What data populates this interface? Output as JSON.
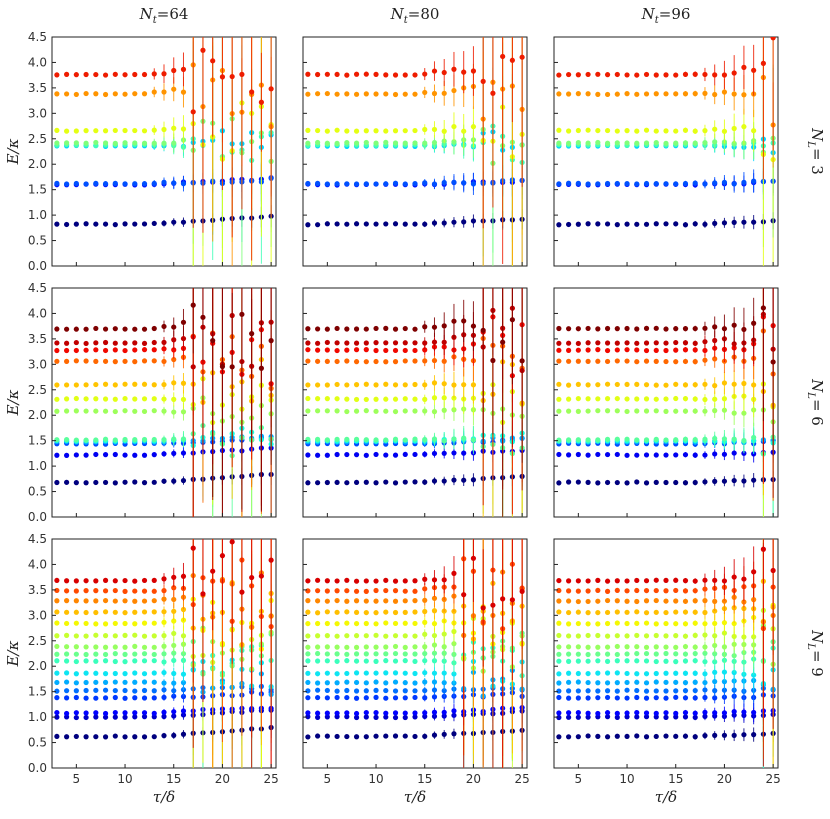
{
  "chart_data": {
    "type": "scatter",
    "description_of_layout": "3x3 grid of energy-level panels with error bars",
    "column_titles": [
      "N_t = 64",
      "N_t = 80",
      "N_t = 96"
    ],
    "column_title_parts": [
      {
        "symbol": "N",
        "sub": "t",
        "value": "=64"
      },
      {
        "symbol": "N",
        "sub": "t",
        "value": "=80"
      },
      {
        "symbol": "N",
        "sub": "t",
        "value": "=96"
      }
    ],
    "row_titles": [
      "N_L = 3",
      "N_L = 6",
      "N_L = 9"
    ],
    "row_title_parts": [
      {
        "symbol": "N",
        "sub": "L",
        "value": "= 3"
      },
      {
        "symbol": "N",
        "sub": "L",
        "value": "= 6"
      },
      {
        "symbol": "N",
        "sub": "L",
        "value": "= 9"
      }
    ],
    "xlabel": "τ/δ",
    "ylabel": "E/κ",
    "xlim": [
      2.5,
      25.5
    ],
    "ylim": [
      0.0,
      4.5
    ],
    "xticks": [
      "5",
      "10",
      "15",
      "20",
      "25"
    ],
    "xtick_values": [
      5,
      10,
      15,
      20,
      25
    ],
    "yticks": [
      "0.0",
      "0.5",
      "1.0",
      "1.5",
      "2.0",
      "2.5",
      "3.0",
      "3.5",
      "4.0",
      "4.5"
    ],
    "ytick_values": [
      0.0,
      0.5,
      1.0,
      1.5,
      2.0,
      2.5,
      3.0,
      3.5,
      4.0,
      4.5
    ],
    "tau_values": [
      3,
      4,
      5,
      6,
      7,
      8,
      9,
      10,
      11,
      12,
      13,
      14,
      15,
      16,
      17,
      18,
      19,
      20,
      21,
      22,
      23,
      24,
      25
    ],
    "rows": [
      {
        "N_L": 3,
        "levels": [
          0.82,
          1.6,
          1.62,
          2.36,
          2.38,
          2.42,
          2.66,
          3.38,
          3.76
        ],
        "level_colors": [
          "#00007f",
          "#0010ff",
          "#0050ff",
          "#00d4ff",
          "#40ffb7",
          "#7fff7a",
          "#e4ff13",
          "#ff9400",
          "#ee1c00"
        ],
        "panels": [
          {
            "N_t": 64,
            "stable_until": 12,
            "drift": 0.35,
            "wild_after": 16
          },
          {
            "N_t": 80,
            "stable_until": 14,
            "drift": 0.28,
            "wild_after": 20
          },
          {
            "N_t": 96,
            "stable_until": 17,
            "drift": 0.22,
            "wild_after": 23
          }
        ]
      },
      {
        "N_L": 6,
        "levels": [
          0.68,
          1.22,
          1.44,
          1.48,
          1.5,
          1.52,
          2.08,
          2.32,
          2.6,
          3.06,
          3.28,
          3.42,
          3.7
        ],
        "level_colors": [
          "#00007f",
          "#0000f1",
          "#004cff",
          "#00a8ff",
          "#16ffe1",
          "#5aff9d",
          "#9dff5a",
          "#e1ff16",
          "#ffc400",
          "#ff6800",
          "#f10800",
          "#c00000",
          "#7f0000"
        ],
        "panels": [
          {
            "N_t": 64,
            "stable_until": 13,
            "drift": 0.4,
            "wild_after": 16
          },
          {
            "N_t": 80,
            "stable_until": 14,
            "drift": 0.3,
            "wild_after": 20
          },
          {
            "N_t": 96,
            "stable_until": 17,
            "drift": 0.2,
            "wild_after": 23
          }
        ]
      },
      {
        "N_L": 9,
        "levels": [
          0.62,
          1.0,
          1.08,
          1.38,
          1.52,
          1.68,
          1.86,
          2.1,
          2.24,
          2.38,
          2.6,
          2.84,
          3.06,
          3.28,
          3.48,
          3.68
        ],
        "level_colors": [
          "#00007f",
          "#0000c8",
          "#0000ff",
          "#0038ff",
          "#0070ff",
          "#00acff",
          "#0de5f2",
          "#3affbc",
          "#6aff8d",
          "#97ff60",
          "#c7ff30",
          "#f4f802",
          "#ffbf00",
          "#ff8600",
          "#ff4a00",
          "#d80000"
        ],
        "panels": [
          {
            "N_t": 64,
            "stable_until": 13,
            "drift": 0.42,
            "wild_after": 16
          },
          {
            "N_t": 80,
            "stable_until": 14,
            "drift": 0.32,
            "wild_after": 18
          },
          {
            "N_t": 96,
            "stable_until": 17,
            "drift": 0.22,
            "wild_after": 23
          }
        ]
      }
    ]
  },
  "colors": {
    "panel_background": "#ffffff",
    "axis_color": "#222222",
    "grid": "none"
  }
}
